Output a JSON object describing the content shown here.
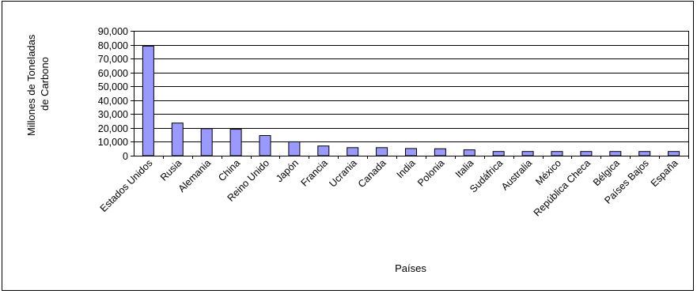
{
  "chart_data": {
    "type": "bar",
    "title": "",
    "xlabel": "Países",
    "ylabel_lines": [
      "Millones de Toneladas",
      "de Carbono"
    ],
    "categories": [
      "Estados Unidos",
      "Rusia",
      "Alemania",
      "China",
      "Reino Unido",
      "Japón",
      "Francia",
      "Ucrania",
      "Canada",
      "India",
      "Polonia",
      "Italia",
      "Sudáfrica",
      "Australia",
      "México",
      "República Checa",
      "Bélgica",
      "Países Bajos",
      "España"
    ],
    "values": [
      79000,
      23500,
      19500,
      19000,
      14500,
      10000,
      7000,
      5800,
      5800,
      5200,
      5000,
      4200,
      3000,
      3000,
      3000,
      3000,
      3000,
      3000,
      3000
    ],
    "ylim": [
      0,
      90000
    ],
    "yticks": [
      0,
      10000,
      20000,
      30000,
      40000,
      50000,
      60000,
      70000,
      80000,
      90000
    ],
    "ytick_labels": [
      "0",
      "10,000",
      "20,000",
      "30,000",
      "40,000",
      "50,000",
      "60,000",
      "70,000",
      "80,000",
      "90,000"
    ],
    "grid": true,
    "legend": "none",
    "colors": {
      "bar_fill": "#9999ff",
      "bar_stroke": "#000000",
      "grid": "#000000",
      "background": "#ffffff"
    }
  }
}
